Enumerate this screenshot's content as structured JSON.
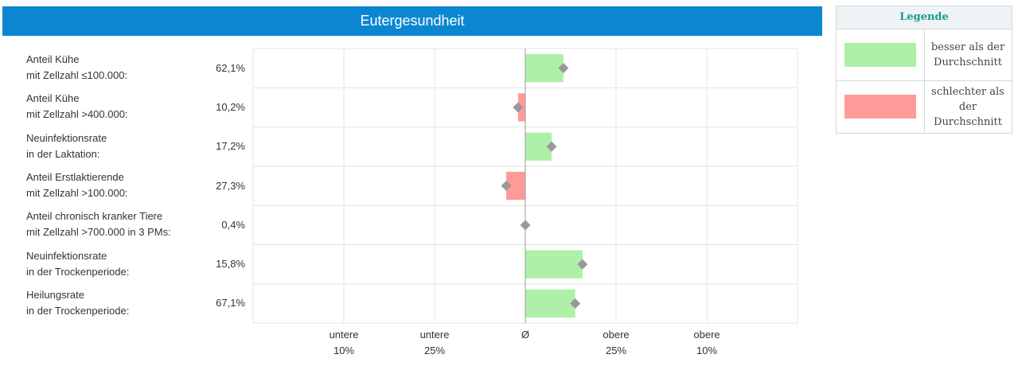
{
  "header": {
    "title": "Eutergesundheit"
  },
  "colors": {
    "better": "#aef0a8",
    "worse": "#ff9a98",
    "marker": "#999999",
    "grid": "#e3e3e3",
    "header_bg": "#0b87d2"
  },
  "legend": {
    "title": "Legende",
    "items": [
      {
        "text": "besser als der Durchschnitt",
        "color": "#aef0a8"
      },
      {
        "text": "schlechter als der Durchschnitt",
        "color": "#ff9a98"
      }
    ]
  },
  "chart_data": {
    "type": "bar",
    "title": "Eutergesundheit",
    "orientation": "horizontal",
    "x_ticks": [
      {
        "line1": "untere",
        "line2": "10%"
      },
      {
        "line1": "untere",
        "line2": "25%"
      },
      {
        "line1": "Ø",
        "line2": ""
      },
      {
        "line1": "obere",
        "line2": "25%"
      },
      {
        "line1": "obere",
        "line2": "10%"
      }
    ],
    "rows": [
      {
        "label_line1": "Anteil Kühe",
        "label_line2": "mit Zellzahl ≤100.000:",
        "value_label": "62,1%",
        "bar": 0.42,
        "marker": 0.42,
        "status": "better"
      },
      {
        "label_line1": "Anteil Kühe",
        "label_line2": "mit Zellzahl >400.000:",
        "value_label": "10,2%",
        "bar": -0.08,
        "marker": -0.08,
        "status": "worse"
      },
      {
        "label_line1": "Neuinfektionsrate",
        "label_line2": "in der Laktation:",
        "value_label": "17,2%",
        "bar": 0.29,
        "marker": 0.29,
        "status": "better"
      },
      {
        "label_line1": "Anteil Erstlaktierende",
        "label_line2": "mit Zellzahl >100.000:",
        "value_label": "27,3%",
        "bar": -0.21,
        "marker": -0.21,
        "status": "worse"
      },
      {
        "label_line1": "Anteil chronisch kranker Tiere",
        "label_line2": "mit Zellzahl >700.000 in 3 PMs:",
        "value_label": "0,4%",
        "bar": 0,
        "marker": 0,
        "status": "better"
      },
      {
        "label_line1": "Neuinfektionsrate",
        "label_line2": "in der Trockenperiode:",
        "value_label": "15,8%",
        "bar": 0.63,
        "marker": 0.63,
        "status": "better"
      },
      {
        "label_line1": "Heilungsrate",
        "label_line2": "in der Trockenperiode:",
        "value_label": "67,1%",
        "bar": 0.55,
        "marker": 0.55,
        "status": "better"
      }
    ],
    "grid": true
  }
}
